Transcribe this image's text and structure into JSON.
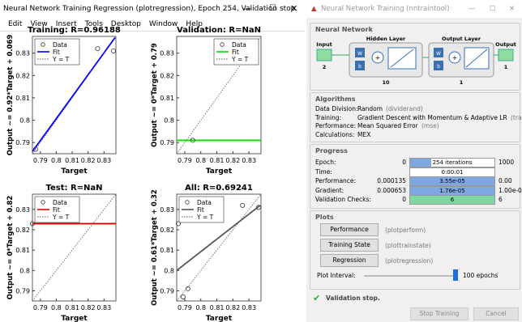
{
  "left_window": {
    "title": "Neural Network Training Regression (plotregression), Epoch 254, Validation stop.",
    "menu": [
      "Edit",
      "View",
      "Insert",
      "Tools",
      "Desktop",
      "Window",
      "Help"
    ],
    "legend": [
      "Data",
      "Fit",
      "Y = T"
    ],
    "xlim": [
      0.785,
      0.8375
    ],
    "ylim": [
      0.785,
      0.8375
    ],
    "xticks": [
      0.79,
      0.8,
      0.81,
      0.82,
      0.83
    ],
    "yticks": [
      0.79,
      0.8,
      0.81,
      0.82,
      0.83
    ],
    "plots": [
      {
        "title": "Training: R=0.96188",
        "xlabel": "Target",
        "ylabel": "Output ~= 0.92*Target + 0.069",
        "fit_color": "#0000ff",
        "legend_corner": "upper left",
        "points_x": [
          0.787,
          0.826,
          0.836
        ],
        "points_y": [
          0.787,
          0.832,
          0.831
        ],
        "fit_x": [
          0.785,
          0.837
        ],
        "fit_y": [
          0.786,
          0.837
        ]
      },
      {
        "title": "Validation: R=NaN",
        "xlabel": "Target",
        "ylabel": "Output ~= 0*Target + 0.79",
        "fit_color": "#00e000",
        "legend_corner": "upper right",
        "points_x": [
          0.795
        ],
        "points_y": [
          0.791
        ],
        "fit_x": [
          0.785,
          0.8375
        ],
        "fit_y": [
          0.791,
          0.791
        ]
      },
      {
        "title": "Test: R=NaN",
        "xlabel": "Target",
        "ylabel": "Output ~= 0*Target + 0.82",
        "fit_color": "#e00000",
        "legend_corner": "upper left",
        "points_x": [
          0.785
        ],
        "points_y": [
          0.823
        ],
        "fit_x": [
          0.785,
          0.8375
        ],
        "fit_y": [
          0.823,
          0.823
        ]
      },
      {
        "title": "All: R=0.69241",
        "xlabel": "Target",
        "ylabel": "Output ~= 0.61*Target + 0.32",
        "fit_color": "#555555",
        "legend_corner": "upper left",
        "points_x": [
          0.786,
          0.789,
          0.792,
          0.826,
          0.836
        ],
        "points_y": [
          0.823,
          0.787,
          0.791,
          0.832,
          0.831
        ],
        "fit_x": [
          0.785,
          0.837
        ],
        "fit_y": [
          0.8,
          0.832
        ]
      }
    ]
  },
  "right_window": {
    "title": "Neural Network Training (nntraintool)",
    "network": {
      "heading": "Neural Network",
      "input": "Input",
      "input_size": "2",
      "hidden": "Hidden Layer",
      "hidden_size": "10",
      "output_layer": "Output Layer",
      "output_layer_size": "1",
      "output": "Output",
      "output_size": "1",
      "w": "W",
      "b": "b"
    },
    "algorithms": {
      "heading": "Algorithms",
      "rows": [
        [
          "Data Division:",
          "Random",
          "(dividerand)"
        ],
        [
          "Training:",
          "Gradient Descent with Momentum & Adaptive LR",
          "(traingdx)"
        ],
        [
          "Performance:",
          "Mean Squared Error",
          "(mse)"
        ],
        [
          "Calculations:",
          "MEX",
          ""
        ]
      ]
    },
    "progress": {
      "heading": "Progress",
      "rows": [
        [
          "Epoch:",
          "0",
          "254 iterations",
          "1000"
        ],
        [
          "Time:",
          "",
          "0:00:01",
          ""
        ],
        [
          "Performance:",
          "0.000135",
          "3.55e-05",
          "0.00"
        ],
        [
          "Gradient:",
          "0.000653",
          "1.76e-05",
          "1.00e-05"
        ],
        [
          "Validation Checks:",
          "0",
          "6",
          "6"
        ]
      ]
    },
    "plots": {
      "heading": "Plots",
      "buttons": [
        [
          "Performance",
          "(plotperform)"
        ],
        [
          "Training State",
          "(plottrainstate)"
        ],
        [
          "Regression",
          "(plotregression)"
        ]
      ],
      "interval_label": "Plot Interval:",
      "interval_value": "100 epochs"
    },
    "status": "Validation stop.",
    "stop_button": "Stop Training",
    "cancel_button": "Cancel"
  }
}
